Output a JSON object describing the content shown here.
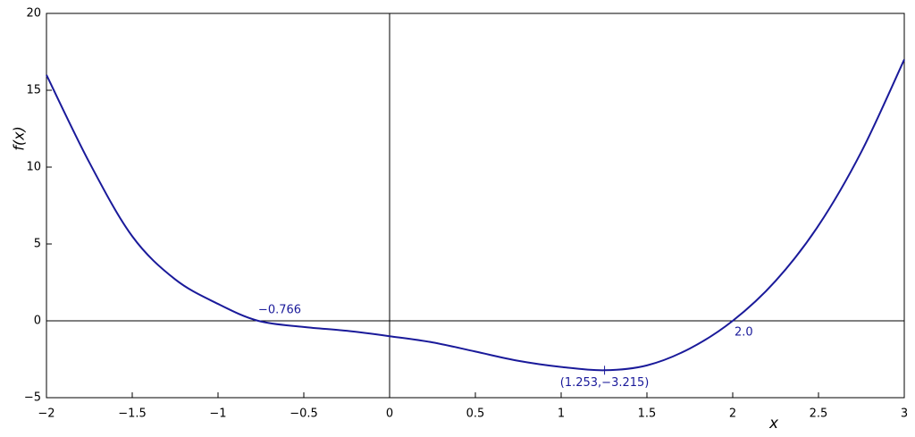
{
  "chart_data": {
    "type": "line",
    "x_label": "x",
    "y_label": "f(x)",
    "x": [
      -2,
      -1.75,
      -1.5,
      -1.25,
      -1,
      -0.766,
      -0.5,
      -0.25,
      0,
      0.25,
      0.5,
      0.75,
      1,
      1.253,
      1.5,
      1.75,
      2,
      2.25,
      2.5,
      2.75,
      3
    ],
    "values": [
      16,
      10.3,
      5.5,
      2.7,
      1.1,
      0,
      -0.4,
      -0.65,
      -1,
      -1.4,
      -2.0,
      -2.6,
      -3.0,
      -3.215,
      -2.9,
      -1.8,
      0,
      2.6,
      6.2,
      11.0,
      17
    ],
    "color": "#1a1a9a",
    "xlim": [
      -2,
      3
    ],
    "ylim": [
      -5,
      20
    ],
    "xticks": [
      {
        "value": -2,
        "label": "−2"
      },
      {
        "value": -1.5,
        "label": "−1.5"
      },
      {
        "value": -1,
        "label": "−1"
      },
      {
        "value": -0.5,
        "label": "−0.5"
      },
      0,
      0.5,
      1,
      1.5,
      2,
      2.5,
      3
    ],
    "yticks": [
      {
        "value": -5,
        "label": "−5"
      },
      0,
      5,
      10,
      15,
      20
    ],
    "annotations": [
      {
        "text": "−0.766",
        "x": -0.766,
        "y": 0
      },
      {
        "text": "2.0",
        "x": 2.0,
        "y": 0
      },
      {
        "text": "(1.253,−3.215)",
        "x": 1.253,
        "y": -3.215
      }
    ]
  }
}
